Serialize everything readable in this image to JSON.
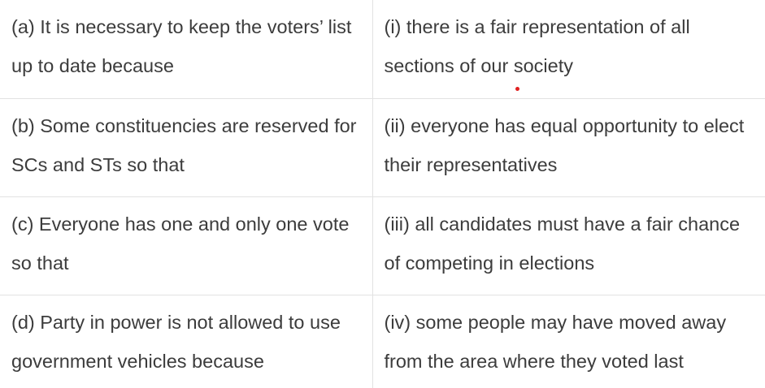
{
  "rows": [
    {
      "left": "(a) It is necessary to keep the voters’ list up to date because",
      "right": "(i) there is a fair representation of all sections of our society"
    },
    {
      "left": "(b) Some constituencies are reserved for SCs and STs so that",
      "right": "(ii) everyone has equal opportunity to elect their representatives"
    },
    {
      "left": "(c) Everyone has one and only one vote so that",
      "right": "(iii) all candidates must have a fair chance of competing in elections"
    },
    {
      "left": "(d) Party in power is not allowed to use government vehicles because",
      "right": "(iv) some people may have moved away from the area where they voted last"
    }
  ],
  "colors": {
    "text": "#3c3c3c",
    "border": "#e2e2e2",
    "marker": "#e02020"
  }
}
